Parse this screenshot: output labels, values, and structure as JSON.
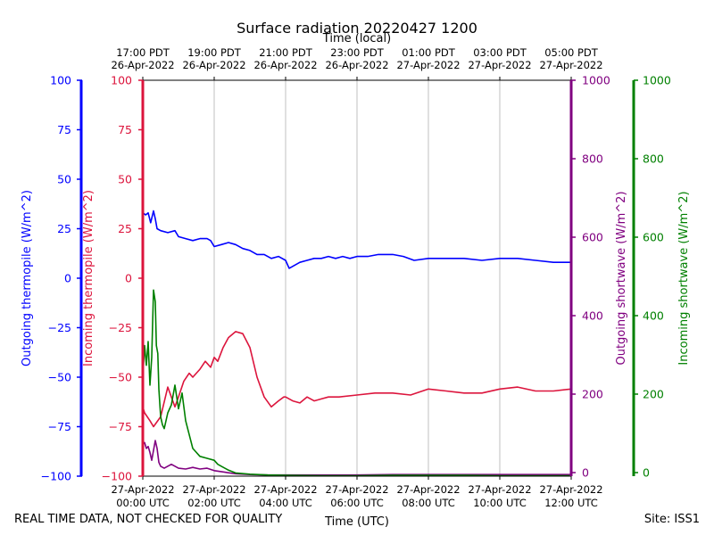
{
  "chart_data": {
    "type": "line",
    "title": "Surface radiation 20220427 1200",
    "top_axis_label": "Time (local)",
    "xlabel": "Time (UTC)",
    "footer_left": "REAL TIME DATA, NOT CHECKED FOR QUALITY",
    "footer_right": "Site: ISS1",
    "x_range_hours_utc": [
      0,
      12
    ],
    "grid": "vertical",
    "bottom_ticks": [
      {
        "hour": 0,
        "line1": "27-Apr-2022",
        "line2": "00:00 UTC"
      },
      {
        "hour": 2,
        "line1": "27-Apr-2022",
        "line2": "02:00 UTC"
      },
      {
        "hour": 4,
        "line1": "27-Apr-2022",
        "line2": "04:00 UTC"
      },
      {
        "hour": 6,
        "line1": "27-Apr-2022",
        "line2": "06:00 UTC"
      },
      {
        "hour": 8,
        "line1": "27-Apr-2022",
        "line2": "08:00 UTC"
      },
      {
        "hour": 10,
        "line1": "27-Apr-2022",
        "line2": "10:00 UTC"
      },
      {
        "hour": 12,
        "line1": "27-Apr-2022",
        "line2": "12:00 UTC"
      }
    ],
    "top_ticks": [
      {
        "hour": 0,
        "line1": "17:00 PDT",
        "line2": "26-Apr-2022"
      },
      {
        "hour": 2,
        "line1": "19:00 PDT",
        "line2": "26-Apr-2022"
      },
      {
        "hour": 4,
        "line1": "21:00 PDT",
        "line2": "26-Apr-2022"
      },
      {
        "hour": 6,
        "line1": "23:00 PDT",
        "line2": "26-Apr-2022"
      },
      {
        "hour": 8,
        "line1": "01:00 PDT",
        "line2": "27-Apr-2022"
      },
      {
        "hour": 10,
        "line1": "03:00 PDT",
        "line2": "27-Apr-2022"
      },
      {
        "hour": 12,
        "line1": "05:00 PDT",
        "line2": "27-Apr-2022"
      }
    ],
    "axes": [
      {
        "id": "outgoing-thermopile",
        "label": "Outgoing thermopile (W/m^2)",
        "color": "#0000ff",
        "ylim": [
          -100,
          100
        ],
        "ticks": [
          -100,
          -75,
          -50,
          -25,
          0,
          25,
          50,
          75,
          100
        ]
      },
      {
        "id": "incoming-thermopile",
        "label": "Incoming thermopile (W/m^2)",
        "color": "#dc143c",
        "ylim": [
          -100,
          100
        ],
        "ticks": [
          -100,
          -75,
          -50,
          -25,
          0,
          25,
          50,
          75,
          100
        ]
      },
      {
        "id": "outgoing-shortwave",
        "label": "Outgoing shortwave (W/m^2)",
        "color": "#800080",
        "ylim": [
          0,
          1000
        ],
        "ticks": [
          0,
          200,
          400,
          600,
          800,
          1000
        ]
      },
      {
        "id": "incoming-shortwave",
        "label": "Incoming shortwave (W/m^2)",
        "color": "#008000",
        "ylim": [
          0,
          1000
        ],
        "ticks": [
          0,
          200,
          400,
          600,
          800,
          1000
        ]
      }
    ],
    "series": [
      {
        "name": "Outgoing thermopile",
        "axis": "outgoing-thermopile",
        "color": "#0000ff",
        "x": [
          0,
          0.08,
          0.15,
          0.22,
          0.3,
          0.35,
          0.4,
          0.5,
          0.7,
          0.9,
          1.0,
          1.2,
          1.4,
          1.6,
          1.8,
          1.9,
          2.0,
          2.2,
          2.4,
          2.6,
          2.8,
          3.0,
          3.2,
          3.4,
          3.6,
          3.8,
          4.0,
          4.1,
          4.2,
          4.4,
          4.6,
          4.8,
          5.0,
          5.2,
          5.4,
          5.6,
          5.8,
          6.0,
          6.3,
          6.6,
          7.0,
          7.3,
          7.6,
          8.0,
          8.5,
          9.0,
          9.5,
          10.0,
          10.5,
          11.0,
          11.5,
          12.0
        ],
        "y": [
          33,
          32,
          33,
          28,
          34,
          30,
          25,
          24,
          23,
          24,
          21,
          20,
          19,
          20,
          20,
          19,
          16,
          17,
          18,
          17,
          15,
          14,
          12,
          12,
          10,
          11,
          9,
          5,
          6,
          8,
          9,
          10,
          10,
          11,
          10,
          11,
          10,
          11,
          11,
          12,
          12,
          11,
          9,
          10,
          10,
          10,
          9,
          10,
          10,
          9,
          8,
          8
        ]
      },
      {
        "name": "Incoming thermopile",
        "axis": "incoming-thermopile",
        "color": "#dc143c",
        "x": [
          0,
          0.05,
          0.2,
          0.3,
          0.5,
          0.7,
          0.9,
          1.0,
          1.15,
          1.3,
          1.4,
          1.6,
          1.75,
          1.9,
          2.0,
          2.1,
          2.25,
          2.4,
          2.6,
          2.8,
          3.0,
          3.2,
          3.4,
          3.6,
          3.8,
          3.95,
          4.0,
          4.2,
          4.4,
          4.6,
          4.8,
          5.0,
          5.2,
          5.5,
          6.0,
          6.5,
          7.0,
          7.5,
          8.0,
          8.5,
          9.0,
          9.5,
          10.0,
          10.5,
          11.0,
          11.5,
          12.0
        ],
        "y": [
          -65,
          -68,
          -72,
          -75,
          -70,
          -55,
          -65,
          -60,
          -52,
          -48,
          -50,
          -46,
          -42,
          -45,
          -40,
          -42,
          -35,
          -30,
          -27,
          -28,
          -35,
          -50,
          -60,
          -65,
          -62,
          -60,
          -60,
          -62,
          -63,
          -60,
          -62,
          -61,
          -60,
          -60,
          -59,
          -58,
          -58,
          -59,
          -56,
          -57,
          -58,
          -58,
          -56,
          -55,
          -57,
          -57,
          -56
        ]
      },
      {
        "name": "Outgoing shortwave",
        "axis": "outgoing-shortwave",
        "color": "#800080",
        "x": [
          0,
          0.05,
          0.1,
          0.15,
          0.2,
          0.25,
          0.3,
          0.35,
          0.4,
          0.45,
          0.5,
          0.6,
          0.8,
          1.0,
          1.2,
          1.4,
          1.6,
          1.8,
          2.0,
          2.3,
          2.6,
          3.0,
          3.5,
          4.0,
          5.0,
          6.0,
          7.0,
          8.0,
          9.0,
          10.0,
          11.0,
          12.0
        ],
        "y": [
          80,
          85,
          70,
          75,
          60,
          40,
          65,
          90,
          70,
          35,
          25,
          20,
          30,
          20,
          18,
          22,
          18,
          20,
          14,
          10,
          6,
          4,
          3,
          3,
          3,
          3,
          4,
          4,
          4,
          4,
          4,
          4
        ]
      },
      {
        "name": "Incoming shortwave",
        "axis": "incoming-shortwave",
        "color": "#008000",
        "x": [
          0,
          0.05,
          0.1,
          0.15,
          0.2,
          0.25,
          0.3,
          0.35,
          0.38,
          0.42,
          0.45,
          0.5,
          0.55,
          0.6,
          0.7,
          0.8,
          0.9,
          1.0,
          1.1,
          1.2,
          1.4,
          1.6,
          1.8,
          2.0,
          2.1,
          2.2,
          2.4,
          2.6,
          3.0,
          3.5,
          4.0,
          5.0,
          6.0,
          7.0,
          8.0,
          9.0,
          10.0,
          11.0,
          12.0
        ],
        "y": [
          250,
          330,
          280,
          340,
          230,
          300,
          470,
          440,
          330,
          310,
          220,
          150,
          130,
          120,
          160,
          180,
          230,
          170,
          210,
          140,
          70,
          50,
          45,
          40,
          30,
          25,
          15,
          8,
          5,
          3,
          2,
          1,
          1,
          2,
          2,
          2,
          1,
          1,
          1
        ]
      }
    ]
  }
}
